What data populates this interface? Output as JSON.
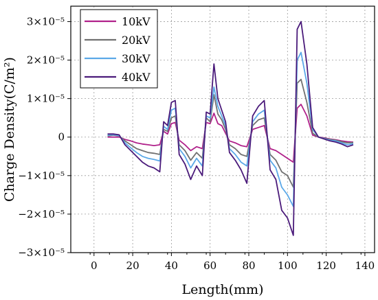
{
  "chart_data": {
    "type": "line",
    "xlabel": "Length(mm)",
    "ylabel": "Charge Density(C/m²)",
    "xlim": [
      -12,
      145
    ],
    "ylim": [
      -3e-05,
      3.4e-05
    ],
    "x_ticks": [
      0,
      20,
      40,
      60,
      80,
      100,
      120,
      140
    ],
    "y_ticks": [
      {
        "value": 3e-05,
        "label": "3×10⁻⁵"
      },
      {
        "value": 2e-05,
        "label": "2×10⁻⁵"
      },
      {
        "value": 1e-05,
        "label": "1×10⁻⁵"
      },
      {
        "value": 0,
        "label": "0"
      },
      {
        "value": -1e-05,
        "label": "−1×10⁻⁵"
      },
      {
        "value": -2e-05,
        "label": "−2×10⁻⁵"
      },
      {
        "value": -3e-05,
        "label": "−3×10⁻⁵"
      }
    ],
    "grid": true,
    "legend_position": "top-left",
    "series": [
      {
        "name": "10kV",
        "color": "#b0208a",
        "x": [
          7,
          10,
          13,
          16,
          19,
          22,
          25,
          28,
          31,
          34,
          36,
          38,
          40,
          42,
          44,
          47,
          50,
          53,
          56,
          58,
          60,
          62,
          64,
          66,
          68,
          70,
          73,
          76,
          79,
          82,
          85,
          88,
          91,
          94,
          97,
          100,
          103,
          105,
          107,
          110,
          113,
          116,
          119,
          122,
          125,
          128,
          131,
          134
        ],
        "y": [
          0.0,
          0.0,
          0.0,
          -6e-07,
          -1e-06,
          -1.5e-06,
          -1.8e-06,
          -2e-06,
          -2.2e-06,
          -2e-06,
          1.5e-06,
          8e-07,
          3.5e-06,
          3.8e-06,
          -8e-07,
          -2e-06,
          -3.5e-06,
          -2.5e-06,
          -3e-06,
          3.8e-06,
          3.5e-06,
          6.2e-06,
          3.5e-06,
          3e-06,
          1e-06,
          -1e-06,
          -1.5e-06,
          -2.2e-06,
          -2.5e-06,
          2e-06,
          2.5e-06,
          3e-06,
          -3e-06,
          -3.5e-06,
          -4.5e-06,
          -5.5e-06,
          -6.5e-06,
          7.5e-06,
          8.5e-06,
          5.5e-06,
          5e-07,
          0.0,
          -2e-07,
          -5e-07,
          -7e-07,
          -1e-06,
          -1.2e-06,
          -1.3e-06
        ]
      },
      {
        "name": "20kV",
        "color": "#707070",
        "x": [
          7,
          10,
          13,
          16,
          19,
          22,
          25,
          28,
          31,
          34,
          36,
          38,
          40,
          42,
          44,
          47,
          50,
          53,
          56,
          58,
          60,
          62,
          64,
          66,
          68,
          70,
          73,
          76,
          79,
          82,
          85,
          88,
          91,
          94,
          97,
          100,
          103,
          105,
          107,
          110,
          113,
          116,
          119,
          122,
          125,
          128,
          131,
          134
        ],
        "y": [
          3e-07,
          5e-07,
          3e-07,
          -1e-06,
          -2e-06,
          -3e-06,
          -3.5e-06,
          -4e-06,
          -4.2e-06,
          -4.5e-06,
          2e-06,
          1.5e-06,
          5e-06,
          5.5e-06,
          -2e-06,
          -3.5e-06,
          -6e-06,
          -4e-06,
          -5.5e-06,
          5e-06,
          4e-06,
          1.1e-05,
          6e-06,
          4.5e-06,
          2e-06,
          -2e-06,
          -3e-06,
          -4.5e-06,
          -5e-06,
          3e-06,
          4.5e-06,
          5e-06,
          -4.5e-06,
          -6e-06,
          -9e-06,
          -1e-05,
          -1.3e-05,
          1.4e-05,
          1.5e-05,
          9e-06,
          1e-06,
          0.0,
          -3e-07,
          -6e-07,
          -8e-07,
          -1.2e-06,
          -1.5e-06,
          -1.4e-06
        ]
      },
      {
        "name": "30kV",
        "color": "#5aa8e8",
        "x": [
          7,
          10,
          13,
          16,
          19,
          22,
          25,
          28,
          31,
          34,
          36,
          38,
          40,
          42,
          44,
          47,
          50,
          53,
          56,
          58,
          60,
          62,
          64,
          66,
          68,
          70,
          73,
          76,
          79,
          82,
          85,
          88,
          91,
          94,
          97,
          100,
          103,
          105,
          107,
          110,
          113,
          116,
          119,
          122,
          125,
          128,
          131,
          134
        ],
        "y": [
          5e-07,
          6e-07,
          4e-07,
          -1.5e-06,
          -2.8e-06,
          -4e-06,
          -5e-06,
          -5.5e-06,
          -5.8e-06,
          -6.2e-06,
          2.8e-06,
          2e-06,
          7e-06,
          7.5e-06,
          -3e-06,
          -5e-06,
          -8e-06,
          -5.5e-06,
          -7.5e-06,
          5.5e-06,
          5e-06,
          1.3e-05,
          8e-06,
          5.5e-06,
          3e-06,
          -3e-06,
          -4.5e-06,
          -6.5e-06,
          -7.5e-06,
          4e-06,
          6e-06,
          7e-06,
          -6e-06,
          -8e-06,
          -1.3e-05,
          -1.5e-05,
          -1.8e-05,
          2e-05,
          2.2e-05,
          1.4e-05,
          2e-06,
          0.0,
          -4e-07,
          -8e-07,
          -1e-06,
          -1.5e-06,
          -2e-06,
          -1.7e-06
        ]
      },
      {
        "name": "40kV",
        "color": "#4a1a7a",
        "x": [
          7,
          10,
          13,
          16,
          19,
          22,
          25,
          28,
          31,
          34,
          36,
          38,
          40,
          42,
          44,
          47,
          50,
          53,
          56,
          58,
          60,
          62,
          64,
          66,
          68,
          70,
          73,
          76,
          79,
          82,
          85,
          88,
          91,
          94,
          97,
          100,
          103,
          105,
          107,
          110,
          113,
          116,
          119,
          122,
          125,
          128,
          131,
          134
        ],
        "y": [
          8e-07,
          8e-07,
          6e-07,
          -2e-06,
          -3.5e-06,
          -5e-06,
          -6.5e-06,
          -7.5e-06,
          -8e-06,
          -9e-06,
          4e-06,
          3e-06,
          9e-06,
          9.5e-06,
          -4.5e-06,
          -7e-06,
          -1.1e-05,
          -7.5e-06,
          -1e-05,
          6.5e-06,
          6e-06,
          1.9e-05,
          1e-05,
          7e-06,
          4e-06,
          -4e-06,
          -6e-06,
          -8.5e-06,
          -1.2e-05,
          5.5e-06,
          8e-06,
          9.5e-06,
          -8.5e-06,
          -1.1e-05,
          -1.9e-05,
          -2.1e-05,
          -2.55e-05,
          2.8e-05,
          3e-05,
          1.9e-05,
          2.5e-06,
          0.0,
          -5e-07,
          -1e-06,
          -1.3e-06,
          -1.8e-06,
          -2.5e-06,
          -2e-06
        ]
      }
    ]
  }
}
